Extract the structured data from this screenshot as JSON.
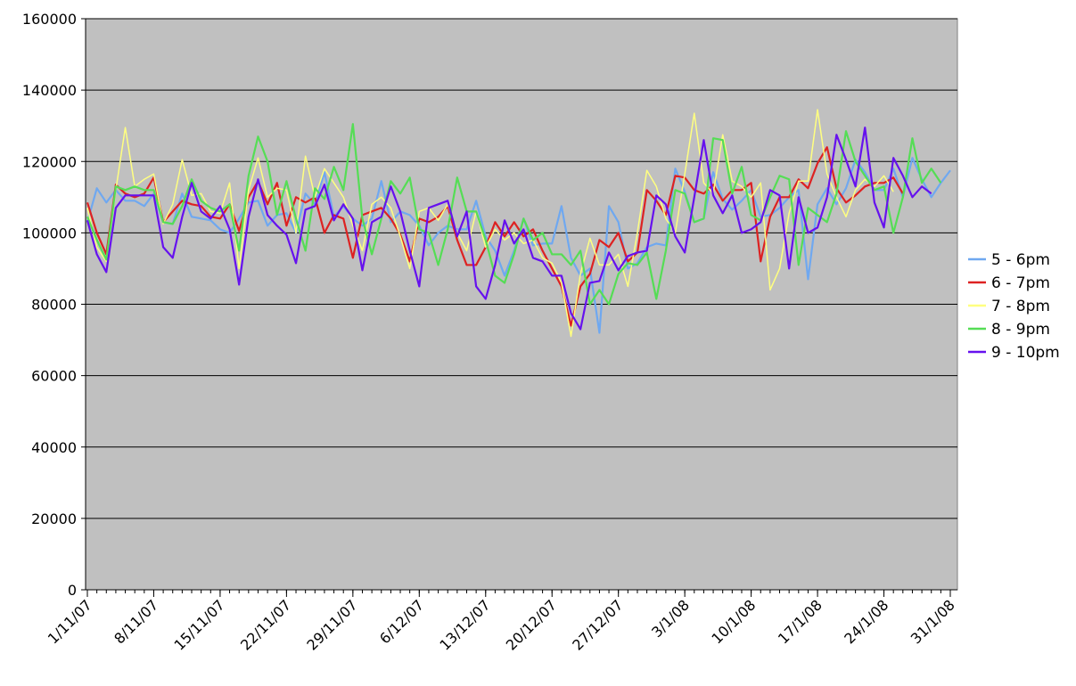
{
  "chart_data": {
    "type": "line",
    "title": "",
    "xlabel": "",
    "ylabel": "",
    "ylim": [
      0,
      160000
    ],
    "yticks": [
      "0",
      "20000",
      "40000",
      "60000",
      "80000",
      "100000",
      "120000",
      "140000",
      "160000"
    ],
    "xtick_labels": [
      "1/11/07",
      "8/11/07",
      "15/11/07",
      "22/11/07",
      "29/11/07",
      "6/12/07",
      "13/12/07",
      "20/12/07",
      "27/12/07",
      "3/1/08",
      "10/1/08",
      "17/1/08",
      "24/1/08",
      "31/1/08"
    ],
    "x_start": "1/11/07",
    "x_end": "31/1/08",
    "grid": true,
    "legend_position": "right",
    "plot_background": "#c0c0c0",
    "series": [
      {
        "name": "5 - 6pm",
        "color": "#6fa8f0",
        "values": [
          103000,
          112500,
          108500,
          112000,
          109000,
          109000,
          107500,
          111000,
          103000,
          102500,
          111000,
          104500,
          104000,
          103500,
          101000,
          100000,
          104000,
          108500,
          109000,
          102000,
          105000,
          105500,
          100000,
          111000,
          108000,
          117000,
          104500,
          107500,
          104000,
          102000,
          104000,
          114500,
          103000,
          106000,
          105000,
          102000,
          96500,
          100000,
          102000,
          101000,
          101000,
          109000,
          99000,
          95000,
          88000,
          95000,
          104000,
          96500,
          97000,
          97000,
          107500,
          93000,
          88000,
          90000,
          72000,
          107500,
          103000,
          90000,
          91500,
          96000,
          97000,
          96500,
          118000,
          111500,
          103000,
          104000,
          117000,
          109500,
          106500,
          109000,
          112000,
          104500,
          105000,
          107000,
          110000,
          112000,
          87000,
          108000,
          112500,
          108000,
          112500,
          120500,
          117000,
          112000,
          112000,
          118000,
          110000,
          121000,
          115000,
          110000,
          114000,
          117500
        ]
      },
      {
        "name": "6 - 7pm",
        "color": "#dd2222",
        "values": [
          108500,
          100000,
          94000,
          113500,
          111000,
          110000,
          111000,
          115500,
          103000,
          106000,
          109000,
          108000,
          107500,
          104500,
          104000,
          108000,
          100500,
          110000,
          114500,
          108000,
          114000,
          102000,
          110000,
          108500,
          110000,
          100000,
          105000,
          104000,
          93000,
          105000,
          106000,
          107000,
          104000,
          99500,
          92000,
          104000,
          103000,
          104500,
          107500,
          98000,
          91000,
          91000,
          96000,
          103000,
          99000,
          103000,
          99000,
          101000,
          95000,
          90000,
          85000,
          74000,
          85000,
          88500,
          98000,
          96000,
          100000,
          92000,
          94500,
          112000,
          109000,
          105000,
          116000,
          115500,
          112000,
          111000,
          113500,
          109000,
          112000,
          112000,
          114000,
          92000,
          104500,
          110000,
          110000,
          115000,
          112500,
          119500,
          124000,
          112500,
          108500,
          110500,
          113000,
          114000,
          114000,
          115500,
          111000
        ]
      },
      {
        "name": "7 - 8pm",
        "color": "#ffff80",
        "values": [
          107000,
          96000,
          92000,
          112000,
          129500,
          113000,
          115000,
          116500,
          102500,
          108000,
          120500,
          110500,
          111000,
          106000,
          105500,
          114000,
          90000,
          112000,
          121000,
          110000,
          112500,
          112000,
          100000,
          121500,
          110000,
          118000,
          114000,
          110000,
          102000,
          95000,
          108000,
          110000,
          107000,
          99000,
          90000,
          106000,
          107000,
          103500,
          108000,
          100000,
          95000,
          106000,
          96000,
          101000,
          98000,
          100000,
          97000,
          98000,
          93000,
          91500,
          86000,
          71000,
          88500,
          98500,
          91000,
          91000,
          94000,
          85000,
          100000,
          117500,
          113000,
          104000,
          100000,
          116500,
          133500,
          114000,
          111000,
          127500,
          114500,
          113000,
          110000,
          114000,
          84000,
          90000,
          105500,
          114500,
          114500,
          134500,
          116500,
          110000,
          104500,
          112000,
          115000,
          113000,
          116000,
          111500
        ]
      },
      {
        "name": "8 - 9pm",
        "color": "#55dd55",
        "values": [
          104500,
          98000,
          92500,
          113000,
          112000,
          113000,
          112000,
          112000,
          103000,
          102500,
          107500,
          115000,
          109000,
          107000,
          106000,
          108000,
          95000,
          116000,
          127000,
          120000,
          105000,
          114500,
          104000,
          95000,
          112500,
          109500,
          118500,
          112000,
          130500,
          104000,
          94000,
          104000,
          114500,
          111000,
          115500,
          101000,
          100000,
          91000,
          101000,
          115500,
          106000,
          106000,
          98000,
          88000,
          86000,
          94000,
          104000,
          98000,
          100000,
          94000,
          94000,
          91000,
          95000,
          80000,
          84000,
          80000,
          88500,
          91500,
          91000,
          94500,
          81500,
          95000,
          112000,
          111000,
          103000,
          104000,
          126500,
          126000,
          111000,
          118500,
          105000,
          103500,
          110000,
          116000,
          115000,
          91000,
          107000,
          105000,
          103000,
          111000,
          128500,
          120000,
          116000,
          112000,
          113000,
          100000,
          110000,
          126500,
          114000,
          118000,
          114000
        ]
      },
      {
        "name": "9 - 10pm",
        "color": "#6611ee",
        "values": [
          103500,
          94000,
          89000,
          107000,
          110500,
          110500,
          110500,
          110500,
          96000,
          93000,
          104500,
          114000,
          106000,
          104000,
          107500,
          101000,
          85500,
          104500,
          115000,
          105000,
          102000,
          99500,
          91500,
          106500,
          107500,
          113500,
          103500,
          108000,
          104000,
          89500,
          103000,
          104500,
          113000,
          106000,
          95000,
          85000,
          107000,
          108000,
          109000,
          99000,
          106000,
          85000,
          81500,
          91000,
          103500,
          97000,
          101000,
          93000,
          92000,
          88000,
          88000,
          77500,
          73000,
          86000,
          86500,
          94500,
          89500,
          93500,
          94500,
          95000,
          110500,
          108000,
          99000,
          94500,
          110000,
          126000,
          110500,
          105500,
          110500,
          100000,
          101000,
          103000,
          112000,
          110500,
          90000,
          110000,
          100000,
          101500,
          110000,
          127500,
          120500,
          113000,
          129500,
          108500,
          101500,
          121000,
          116000,
          110000,
          113000,
          111000
        ]
      }
    ]
  }
}
